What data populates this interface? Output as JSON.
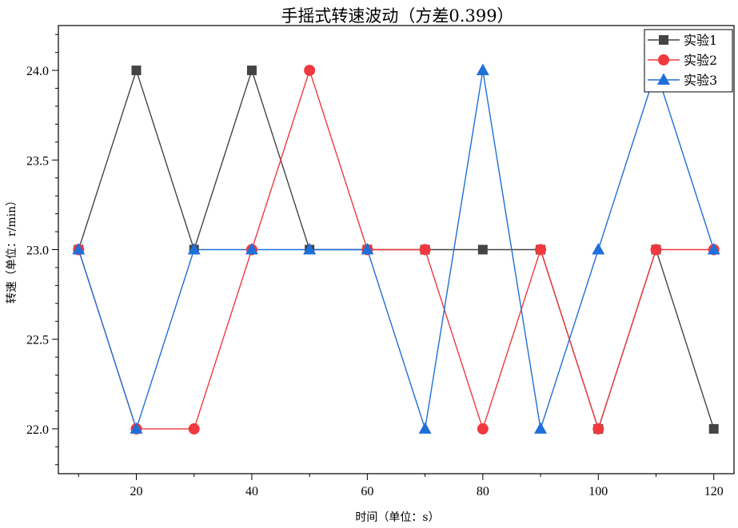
{
  "chart_data": {
    "type": "line",
    "title": "手摇式转速波动（方差0.399）",
    "xlabel": "时间（单位：s）",
    "ylabel": "转速（单位：r/min）",
    "x": [
      10,
      20,
      30,
      40,
      50,
      60,
      70,
      80,
      90,
      100,
      110,
      120
    ],
    "xlim": [
      6.5,
      123.5
    ],
    "ylim": [
      21.75,
      24.25
    ],
    "x_ticks": [
      "20",
      "40",
      "60",
      "80",
      "100",
      "120"
    ],
    "y_ticks": [
      "22.0",
      "22.5",
      "23.0",
      "23.5",
      "24.0"
    ],
    "grid": false,
    "legend_position": "top-right",
    "series": [
      {
        "name": "实验1",
        "color": "#444444",
        "marker": "square",
        "values": [
          23,
          24,
          23,
          24,
          23,
          23,
          23,
          23,
          23,
          22,
          23,
          22
        ]
      },
      {
        "name": "实验2",
        "color": "#f0393e",
        "marker": "circle",
        "values": [
          23,
          22,
          22,
          23,
          24,
          23,
          23,
          22,
          23,
          22,
          23,
          23
        ]
      },
      {
        "name": "实验3",
        "color": "#1f6fd8",
        "marker": "triangle",
        "values": [
          23,
          22,
          23,
          23,
          23,
          23,
          22,
          24,
          22,
          23,
          24,
          23
        ]
      }
    ]
  }
}
